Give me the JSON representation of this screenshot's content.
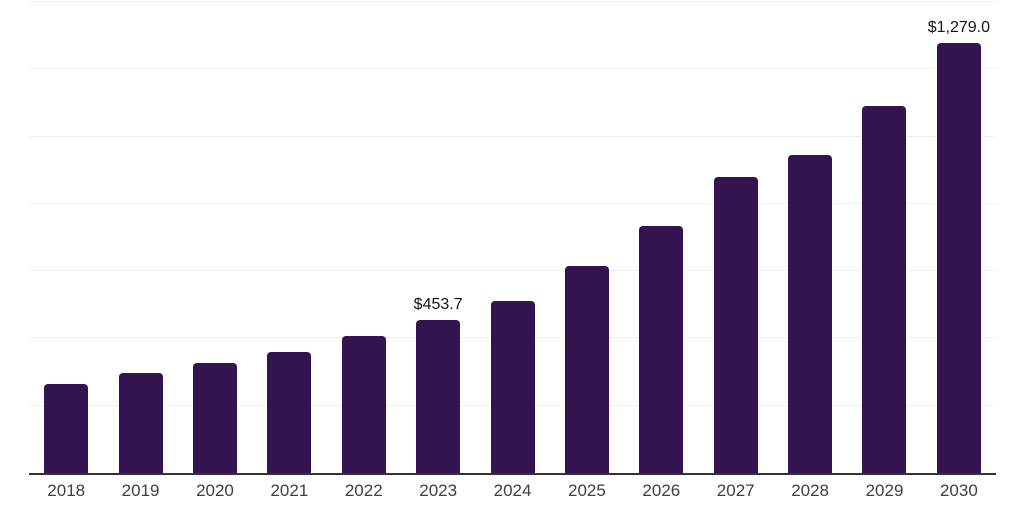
{
  "chart_data": {
    "type": "bar",
    "title": "",
    "xlabel": "",
    "ylabel": "",
    "categories": [
      "2018",
      "2019",
      "2020",
      "2021",
      "2022",
      "2023",
      "2024",
      "2025",
      "2026",
      "2027",
      "2028",
      "2029",
      "2030"
    ],
    "values": [
      265,
      297,
      328,
      361,
      408,
      453.7,
      512,
      616,
      734,
      880,
      944,
      1092,
      1279
    ],
    "value_labels": [
      "",
      "",
      "",
      "",
      "",
      "$453.7",
      "",
      "",
      "",
      "",
      "",
      "",
      "$1,279.0"
    ],
    "ylim": [
      0,
      1400
    ],
    "gridline_interval": 200,
    "grid": true,
    "y_axis_tick_labels_visible": false,
    "legend_position": "none"
  },
  "colors": {
    "bar": "#331450",
    "gridline": "#f0f0f0",
    "axis_line": "#333333",
    "tick_label": "#3f3f3f",
    "value_label": "#141414",
    "background": "#ffffff"
  }
}
